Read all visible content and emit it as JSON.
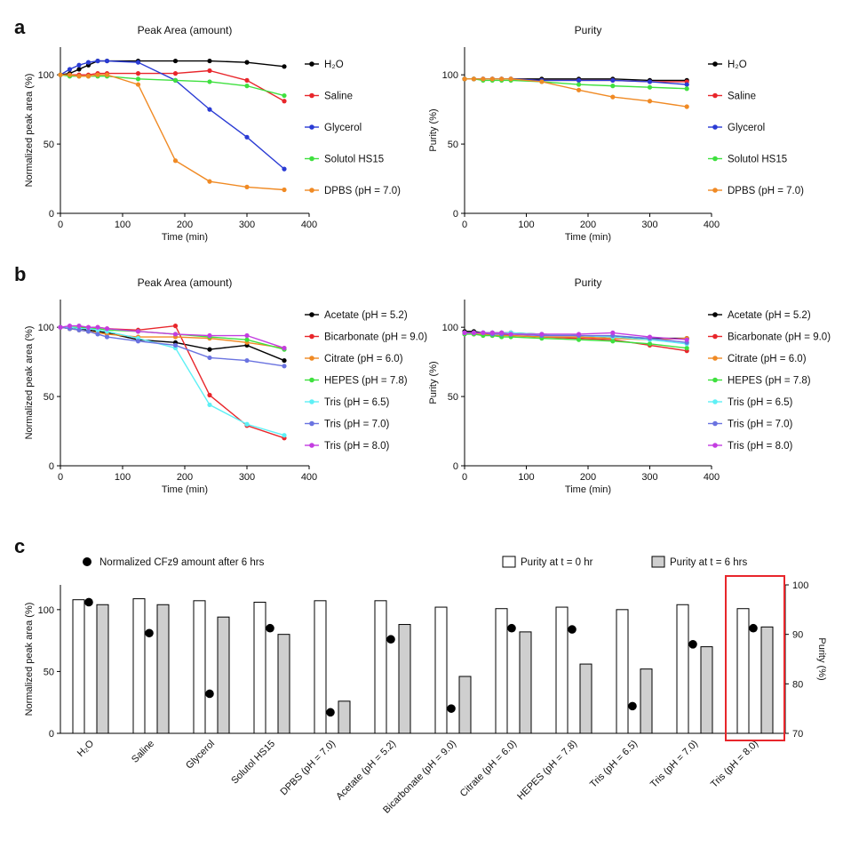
{
  "figure": {
    "panel_labels": [
      "a",
      "b",
      "c"
    ]
  },
  "chart_data": [
    {
      "id": "a1",
      "type": "line",
      "title": "Peak Area (amount)",
      "xlabel": "Time (min)",
      "ylabel": "Normalized peak area (%)",
      "xlim": [
        0,
        400
      ],
      "ylim": [
        0,
        120
      ],
      "xticks": [
        0,
        100,
        200,
        300,
        400
      ],
      "yticks": [
        0,
        50,
        100
      ],
      "series": [
        {
          "name": "H2O",
          "label": "H₂O",
          "color": "#000000",
          "x": [
            0,
            15,
            30,
            45,
            60,
            75,
            125,
            185,
            240,
            300,
            360
          ],
          "y": [
            100,
            101,
            104,
            107,
            110,
            110,
            110,
            110,
            110,
            109,
            106
          ]
        },
        {
          "name": "Saline",
          "label": "Saline",
          "color": "#e8262b",
          "x": [
            0,
            15,
            30,
            45,
            60,
            75,
            125,
            185,
            240,
            300,
            360
          ],
          "y": [
            100,
            100,
            100,
            100,
            101,
            101,
            101,
            101,
            103,
            96,
            81
          ]
        },
        {
          "name": "Glycerol",
          "label": "Glycerol",
          "color": "#2a3bd4",
          "x": [
            0,
            15,
            30,
            45,
            60,
            75,
            125,
            185,
            240,
            300,
            360
          ],
          "y": [
            100,
            104,
            107,
            109,
            110,
            110,
            109,
            96,
            75,
            55,
            32
          ]
        },
        {
          "name": "Solutol HS15",
          "label": "Solutol HS15",
          "color": "#3fe03f",
          "x": [
            0,
            15,
            30,
            45,
            60,
            75,
            125,
            185,
            240,
            300,
            360
          ],
          "y": [
            100,
            99,
            99,
            99,
            99,
            99,
            97,
            96,
            95,
            92,
            85
          ]
        },
        {
          "name": "DPBS (pH = 7.0)",
          "label": "DPBS (pH = 7.0)",
          "color": "#f08a24",
          "x": [
            0,
            15,
            30,
            45,
            60,
            75,
            125,
            185,
            240,
            300,
            360
          ],
          "y": [
            100,
            100,
            99,
            99,
            100,
            100,
            93,
            38,
            23,
            19,
            17
          ]
        }
      ]
    },
    {
      "id": "a2",
      "type": "line",
      "title": "Purity",
      "xlabel": "Time (min)",
      "ylabel": "Purity (%)",
      "xlim": [
        0,
        400
      ],
      "ylim": [
        0,
        120
      ],
      "xticks": [
        0,
        100,
        200,
        300,
        400
      ],
      "yticks": [
        0,
        50,
        100
      ],
      "series": [
        {
          "name": "H2O",
          "label": "H₂O",
          "color": "#000000",
          "x": [
            0,
            15,
            30,
            45,
            60,
            75,
            125,
            185,
            240,
            300,
            360
          ],
          "y": [
            97,
            97,
            97,
            97,
            97,
            97,
            97,
            97,
            97,
            96,
            96
          ]
        },
        {
          "name": "Saline",
          "label": "Saline",
          "color": "#e8262b",
          "x": [
            0,
            15,
            30,
            45,
            60,
            75,
            125,
            185,
            240,
            300,
            360
          ],
          "y": [
            97,
            97,
            97,
            97,
            97,
            97,
            96,
            96,
            96,
            95,
            95
          ]
        },
        {
          "name": "Glycerol",
          "label": "Glycerol",
          "color": "#2a3bd4",
          "x": [
            0,
            15,
            30,
            45,
            60,
            75,
            125,
            185,
            240,
            300,
            360
          ],
          "y": [
            97,
            97,
            97,
            97,
            97,
            97,
            96,
            96,
            96,
            95,
            93
          ]
        },
        {
          "name": "Solutol HS15",
          "label": "Solutol HS15",
          "color": "#3fe03f",
          "x": [
            0,
            15,
            30,
            45,
            60,
            75,
            125,
            185,
            240,
            300,
            360
          ],
          "y": [
            97,
            97,
            96,
            96,
            96,
            96,
            95,
            93,
            92,
            91,
            90
          ]
        },
        {
          "name": "DPBS (pH = 7.0)",
          "label": "DPBS (pH = 7.0)",
          "color": "#f08a24",
          "x": [
            0,
            15,
            30,
            45,
            60,
            75,
            125,
            185,
            240,
            300,
            360
          ],
          "y": [
            97,
            97,
            97,
            97,
            97,
            97,
            95,
            89,
            84,
            81,
            77
          ]
        }
      ]
    },
    {
      "id": "b1",
      "type": "line",
      "title": "Peak Area (amount)",
      "xlabel": "Time (min)",
      "ylabel": "Normalized peak area (%)",
      "xlim": [
        0,
        400
      ],
      "ylim": [
        0,
        120
      ],
      "xticks": [
        0,
        100,
        200,
        300,
        400
      ],
      "yticks": [
        0,
        50,
        100
      ],
      "series": [
        {
          "name": "Acetate (pH = 5.2)",
          "label": "Acetate (pH = 5.2)",
          "color": "#000000",
          "x": [
            0,
            15,
            30,
            45,
            60,
            75,
            125,
            185,
            240,
            300,
            360
          ],
          "y": [
            100,
            99,
            99,
            98,
            97,
            96,
            91,
            89,
            84,
            87,
            76
          ]
        },
        {
          "name": "Bicarbonate (pH = 9.0)",
          "label": "Bicarbonate (pH = 9.0)",
          "color": "#e8262b",
          "x": [
            0,
            15,
            30,
            45,
            60,
            75,
            125,
            185,
            240,
            300,
            360
          ],
          "y": [
            100,
            100,
            100,
            100,
            100,
            99,
            98,
            101,
            51,
            29,
            20
          ]
        },
        {
          "name": "Citrate (pH = 6.0)",
          "label": "Citrate (pH = 6.0)",
          "color": "#f08a24",
          "x": [
            0,
            15,
            30,
            45,
            60,
            75,
            125,
            185,
            240,
            300,
            360
          ],
          "y": [
            100,
            99,
            98,
            97,
            96,
            95,
            93,
            93,
            92,
            89,
            85
          ]
        },
        {
          "name": "HEPES (pH = 7.8)",
          "label": "HEPES (pH = 7.8)",
          "color": "#3fe03f",
          "x": [
            0,
            15,
            30,
            45,
            60,
            75,
            125,
            185,
            240,
            300,
            360
          ],
          "y": [
            100,
            100,
            100,
            99,
            99,
            98,
            97,
            95,
            93,
            91,
            84
          ]
        },
        {
          "name": "Tris (pH = 6.5)",
          "label": "Tris (pH = 6.5)",
          "color": "#5ef0f5",
          "x": [
            0,
            15,
            30,
            45,
            60,
            75,
            125,
            185,
            240,
            300,
            360
          ],
          "y": [
            100,
            100,
            99,
            99,
            98,
            97,
            92,
            85,
            44,
            30,
            22
          ]
        },
        {
          "name": "Tris (pH = 7.0)",
          "label": "Tris (pH = 7.0)",
          "color": "#6a73e0",
          "x": [
            0,
            15,
            30,
            45,
            60,
            75,
            125,
            185,
            240,
            300,
            360
          ],
          "y": [
            100,
            99,
            98,
            97,
            95,
            93,
            90,
            87,
            78,
            76,
            72
          ]
        },
        {
          "name": "Tris (pH = 8.0)",
          "label": "Tris (pH = 8.0)",
          "color": "#c33de0",
          "x": [
            0,
            15,
            30,
            45,
            60,
            75,
            125,
            185,
            240,
            300,
            360
          ],
          "y": [
            100,
            101,
            101,
            100,
            100,
            99,
            97,
            95,
            94,
            94,
            85
          ]
        }
      ]
    },
    {
      "id": "b2",
      "type": "line",
      "title": "Purity",
      "xlabel": "Time (min)",
      "ylabel": "Purity (%)",
      "xlim": [
        0,
        400
      ],
      "ylim": [
        0,
        120
      ],
      "xticks": [
        0,
        100,
        200,
        300,
        400
      ],
      "yticks": [
        0,
        50,
        100
      ],
      "series": [
        {
          "name": "Acetate (pH = 5.2)",
          "label": "Acetate (pH = 5.2)",
          "color": "#000000",
          "x": [
            0,
            15,
            30,
            45,
            60,
            75,
            125,
            185,
            240,
            300,
            360
          ],
          "y": [
            97,
            97,
            96,
            96,
            96,
            96,
            95,
            94,
            93,
            92,
            92
          ]
        },
        {
          "name": "Bicarbonate (pH = 9.0)",
          "label": "Bicarbonate (pH = 9.0)",
          "color": "#e8262b",
          "x": [
            0,
            15,
            30,
            45,
            60,
            75,
            125,
            185,
            240,
            300,
            360
          ],
          "y": [
            96,
            96,
            95,
            95,
            95,
            94,
            93,
            92,
            91,
            87,
            83
          ]
        },
        {
          "name": "Citrate (pH = 6.0)",
          "label": "Citrate (pH = 6.0)",
          "color": "#f08a24",
          "x": [
            0,
            15,
            30,
            45,
            60,
            75,
            125,
            185,
            240,
            300,
            360
          ],
          "y": [
            96,
            95,
            95,
            94,
            94,
            94,
            93,
            93,
            92,
            91,
            92
          ]
        },
        {
          "name": "HEPES (pH = 7.8)",
          "label": "HEPES (pH = 7.8)",
          "color": "#3fe03f",
          "x": [
            0,
            15,
            30,
            45,
            60,
            75,
            125,
            185,
            240,
            300,
            360
          ],
          "y": [
            95,
            95,
            94,
            94,
            93,
            93,
            92,
            91,
            90,
            88,
            85
          ]
        },
        {
          "name": "Tris (pH = 6.5)",
          "label": "Tris (pH = 6.5)",
          "color": "#5ef0f5",
          "x": [
            0,
            15,
            30,
            45,
            60,
            75,
            125,
            185,
            240,
            300,
            360
          ],
          "y": [
            96,
            96,
            96,
            96,
            96,
            96,
            95,
            94,
            93,
            91,
            88
          ]
        },
        {
          "name": "Tris (pH = 7.0)",
          "label": "Tris (pH = 7.0)",
          "color": "#6a73e0",
          "x": [
            0,
            15,
            30,
            45,
            60,
            75,
            125,
            185,
            240,
            300,
            360
          ],
          "y": [
            96,
            96,
            96,
            95,
            95,
            95,
            94,
            94,
            94,
            92,
            89
          ]
        },
        {
          "name": "Tris (pH = 8.0)",
          "label": "Tris (pH = 8.0)",
          "color": "#c33de0",
          "x": [
            0,
            15,
            30,
            45,
            60,
            75,
            125,
            185,
            240,
            300,
            360
          ],
          "y": [
            96,
            96,
            96,
            96,
            96,
            95,
            95,
            95,
            96,
            93,
            91
          ]
        }
      ]
    },
    {
      "id": "c",
      "type": "bar",
      "ylabel_left": "Normalized peak area (%)",
      "ylabel_right": "Purity (%)",
      "ylim_left": [
        0,
        120
      ],
      "yticks_left": [
        0,
        50,
        100
      ],
      "ylim_right": [
        70,
        100
      ],
      "yticks_right": [
        70,
        80,
        90,
        100
      ],
      "categories": [
        "H₂O",
        "Saline",
        "Glycerol",
        "Solutol HS15",
        "DPBS (pH = 7.0)",
        "Acetate (pH = 5.2)",
        "Bicarbonate (pH = 9.0)",
        "Citrate (pH = 6.0)",
        "HEPES (pH = 7.8)",
        "Tris (pH = 6.5)",
        "Tris (pH = 7.0)",
        "Tris (pH = 8.0)"
      ],
      "series": [
        {
          "name": "Purity at t = 0 hr",
          "axis": "right",
          "color": "#ffffff",
          "values": [
            97,
            97.2,
            96.8,
            96.5,
            96.8,
            96.8,
            95.5,
            95.2,
            95.5,
            95,
            96,
            95.2
          ]
        },
        {
          "name": "Purity at t = 6 hrs",
          "axis": "right",
          "color": "#cfcfcf",
          "values": [
            96,
            96,
            93.5,
            90,
            76.5,
            92,
            81.5,
            90.5,
            84,
            83,
            87.5,
            91.5
          ]
        },
        {
          "name": "Normalized CFz9 amount after 6 hrs",
          "axis": "left",
          "type": "scatter",
          "color": "#000000",
          "values": [
            106,
            81,
            32,
            85,
            17,
            76,
            20,
            85,
            84,
            22,
            72,
            85
          ]
        }
      ],
      "highlighted_category": "Tris (pH = 8.0)",
      "highlight_color": "#e8262b"
    }
  ]
}
